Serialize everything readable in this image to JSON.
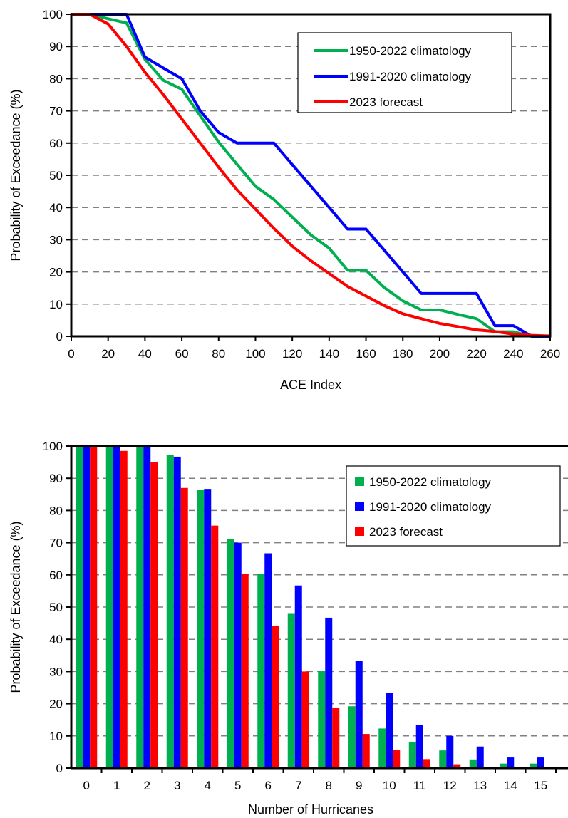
{
  "colors": {
    "climo_1950": "#00b050",
    "climo_1991": "#0000ff",
    "forecast": "#ff0000",
    "grid": "#808080"
  },
  "chart_data": [
    {
      "type": "line",
      "xlabel": "ACE Index",
      "ylabel": "Probability of Exceedance (%)",
      "xlim": [
        0,
        260
      ],
      "ylim": [
        0,
        100
      ],
      "xticks": [
        "0",
        "20",
        "40",
        "60",
        "80",
        "100",
        "120",
        "140",
        "160",
        "180",
        "200",
        "220",
        "240",
        "260"
      ],
      "yticks": [
        "0",
        "10",
        "20",
        "30",
        "40",
        "50",
        "60",
        "70",
        "80",
        "90",
        "100"
      ],
      "grid": "horizontal dashed",
      "legend_position": "top-right",
      "series": [
        {
          "name": "1950-2022 climatology",
          "color": "climo_1950",
          "x": [
            0,
            10,
            20,
            30,
            40,
            50,
            60,
            70,
            80,
            90,
            100,
            110,
            120,
            130,
            140,
            150,
            160,
            170,
            180,
            190,
            200,
            210,
            220,
            230,
            240,
            250,
            260
          ],
          "values": [
            100,
            100,
            98.6,
            97.3,
            86,
            79.5,
            76.7,
            68.5,
            60.3,
            53.4,
            46.6,
            42.5,
            37,
            31.5,
            27.4,
            20.5,
            20.5,
            15.1,
            11,
            8.2,
            8.2,
            6.8,
            5.5,
            1.4,
            1.4,
            0,
            0
          ]
        },
        {
          "name": "1991-2020 climatology",
          "color": "climo_1991",
          "x": [
            0,
            10,
            20,
            30,
            40,
            50,
            60,
            70,
            80,
            90,
            100,
            110,
            120,
            130,
            140,
            150,
            160,
            170,
            180,
            190,
            200,
            210,
            220,
            230,
            240,
            250,
            260
          ],
          "values": [
            100,
            100,
            100,
            100,
            86.7,
            83.3,
            80,
            70,
            63.3,
            60,
            60,
            60,
            53.3,
            46.7,
            40,
            33.3,
            33.3,
            26.7,
            20,
            13.3,
            13.3,
            13.3,
            13.3,
            3.3,
            3.3,
            0,
            0
          ]
        },
        {
          "name": "2023 forecast",
          "color": "forecast",
          "x": [
            0,
            10,
            20,
            30,
            40,
            50,
            60,
            70,
            80,
            90,
            100,
            110,
            120,
            130,
            140,
            150,
            160,
            170,
            180,
            190,
            200,
            210,
            220,
            230,
            240,
            250,
            260
          ],
          "values": [
            100,
            100,
            97,
            90,
            82,
            75,
            67.5,
            60,
            52.5,
            45.5,
            39.5,
            33.5,
            28,
            23.5,
            19.5,
            15.5,
            12.5,
            9.5,
            7,
            5.5,
            4,
            3,
            2,
            1.5,
            0.7,
            0.3,
            0.1
          ]
        }
      ]
    },
    {
      "type": "bar",
      "xlabel": "Number of Hurricanes",
      "ylabel": "Probability of Exceedance (%)",
      "ylim": [
        0,
        100
      ],
      "categories": [
        "0",
        "1",
        "2",
        "3",
        "4",
        "5",
        "6",
        "7",
        "8",
        "9",
        "10",
        "11",
        "12",
        "13",
        "14",
        "15"
      ],
      "yticks": [
        "0",
        "10",
        "20",
        "30",
        "40",
        "50",
        "60",
        "70",
        "80",
        "90",
        "100"
      ],
      "grid": "horizontal dashed",
      "legend_position": "top-right",
      "series": [
        {
          "name": "1950-2022 climatology",
          "color": "climo_1950",
          "values": [
            100,
            100,
            100,
            97.3,
            86.3,
            71.2,
            60.3,
            47.9,
            30.1,
            19.2,
            12.3,
            8.2,
            5.5,
            2.7,
            1.4,
            1.4
          ]
        },
        {
          "name": "1991-2020 climatology",
          "color": "climo_1991",
          "values": [
            100,
            100,
            100,
            96.7,
            86.7,
            70,
            66.7,
            56.7,
            46.7,
            33.3,
            23.3,
            13.3,
            10,
            6.7,
            3.3,
            3.3
          ]
        },
        {
          "name": "2023 forecast",
          "color": "forecast",
          "values": [
            100,
            98.5,
            95,
            87,
            75.3,
            60.2,
            44.2,
            30,
            18.7,
            10.6,
            5.6,
            2.8,
            1.2,
            0.4,
            0.1,
            0
          ]
        }
      ]
    }
  ]
}
